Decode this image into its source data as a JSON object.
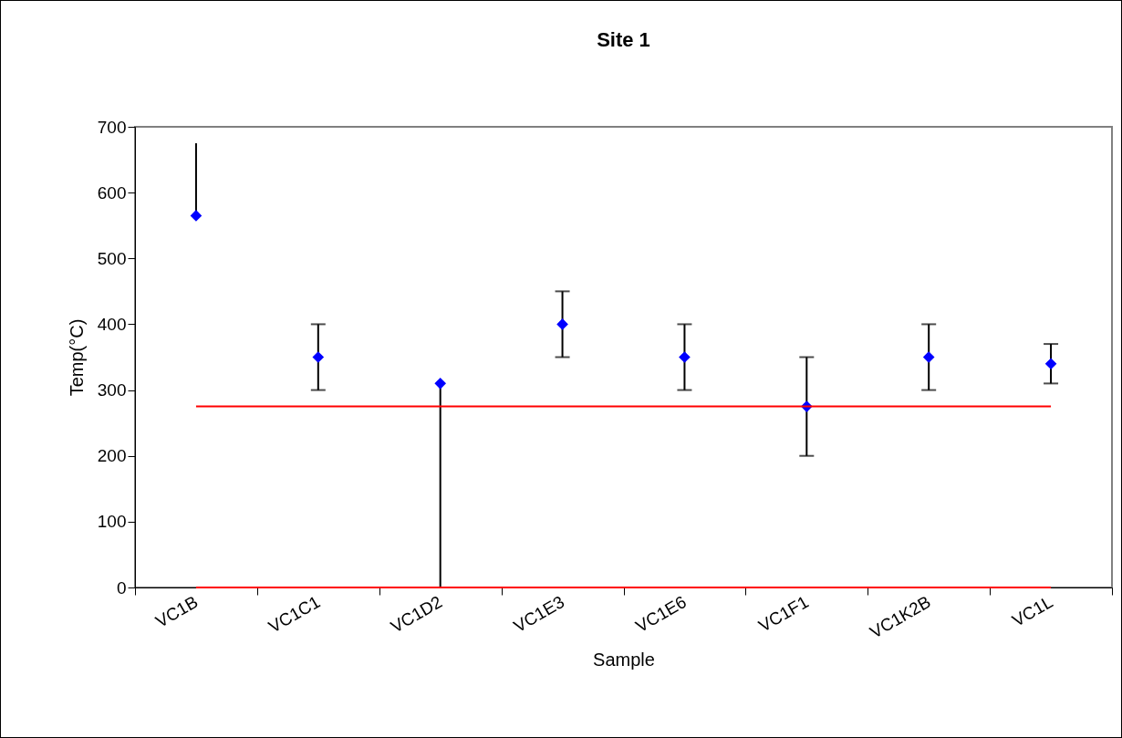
{
  "chart_data": {
    "type": "scatter",
    "title": "Site 1",
    "xlabel": "Sample",
    "ylabel": "Temp(°C)",
    "categories": [
      "VC1B",
      "VC1C1",
      "VC1D2",
      "VC1E3",
      "VC1E6",
      "VC1F1",
      "VC1K2B",
      "VC1L"
    ],
    "series": [
      {
        "color": "#0000ff",
        "values": [
          565,
          350,
          310,
          400,
          350,
          275,
          350,
          340
        ],
        "errors": [
          [
            565,
            675
          ],
          50,
          [
            0,
            310
          ],
          50,
          50,
          75,
          50,
          30
        ]
      },
      {
        "type": "line",
        "marker": "none",
        "color": "#ff0000",
        "values": [
          275,
          275,
          275,
          275,
          275,
          275,
          275,
          275
        ]
      },
      {
        "type": "line",
        "marker": "none",
        "color": "#ff0000",
        "values": [
          0,
          0,
          0,
          0,
          0,
          0,
          0,
          0
        ]
      }
    ],
    "ylim": [
      0,
      700
    ],
    "yticks": [
      0,
      100,
      200,
      300,
      400,
      500,
      600,
      700
    ],
    "grid": false,
    "marker": "diamond",
    "line_style": "solid"
  }
}
